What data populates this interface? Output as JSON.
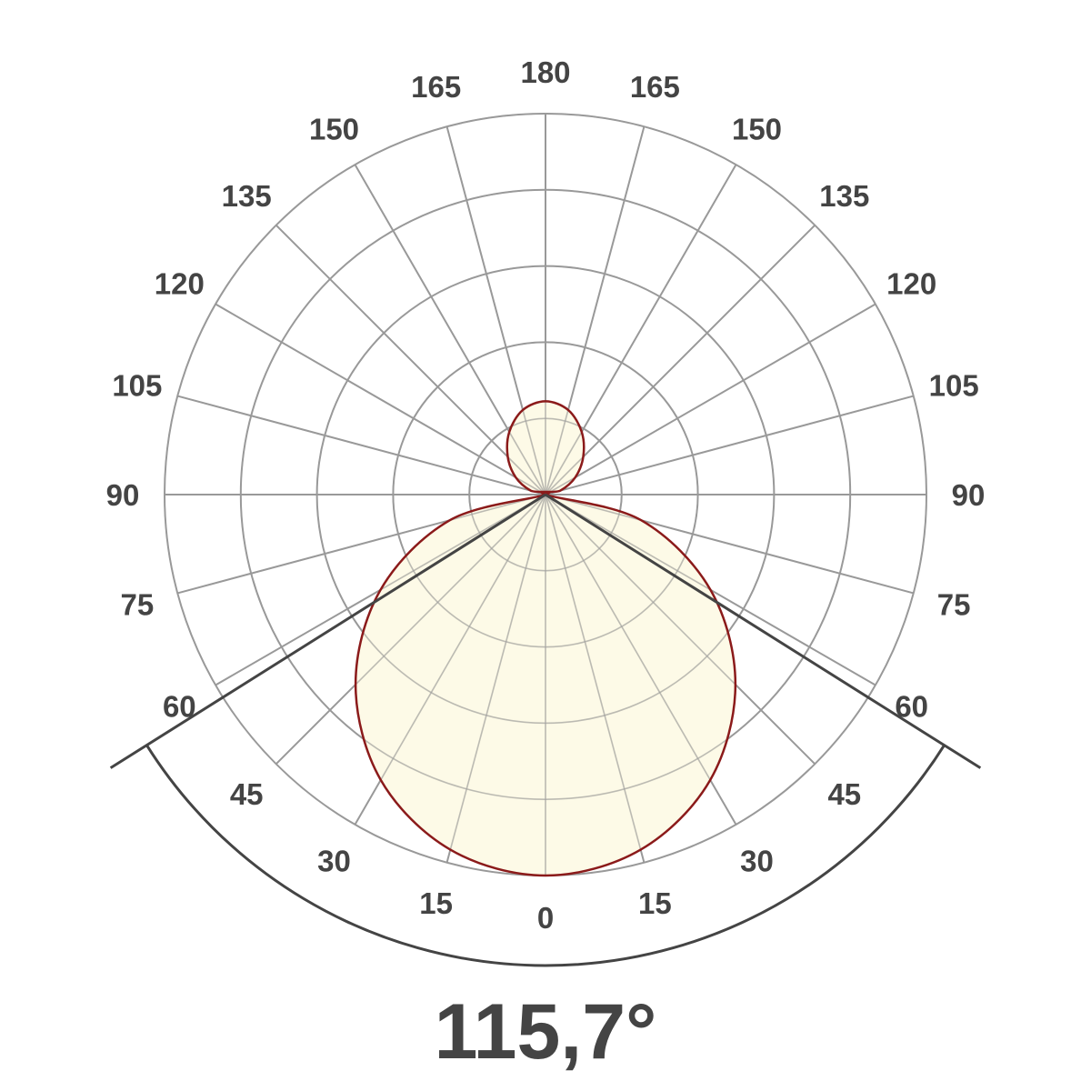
{
  "chart_data": {
    "type": "polar",
    "title": "",
    "beam_angle_label": "115,7°",
    "beam_angle_deg": 115.7,
    "angle_ticks": [
      0,
      15,
      30,
      45,
      60,
      75,
      90,
      105,
      120,
      135,
      150,
      165,
      180
    ],
    "angle_tick_labels": [
      "0",
      "15",
      "30",
      "45",
      "60",
      "75",
      "90",
      "105",
      "120",
      "135",
      "150",
      "165",
      "180"
    ],
    "radial_rings": 5,
    "grid": true,
    "series": [
      {
        "angles_deg": [
          0,
          15,
          30,
          45,
          60,
          75,
          90,
          105,
          120,
          135,
          150,
          165,
          180
        ],
        "relative_intensity": [
          1.0,
          0.965,
          0.865,
          0.705,
          0.5,
          0.26,
          0.0,
          0.04,
          0.09,
          0.14,
          0.19,
          0.23,
          0.245
        ]
      }
    ],
    "colors": {
      "curve_stroke": "#8b1a1a",
      "curve_fill": "#fdf9e3",
      "grid": "#9a9a9a",
      "beam_lines": "#444444",
      "labels": "#444444"
    }
  }
}
